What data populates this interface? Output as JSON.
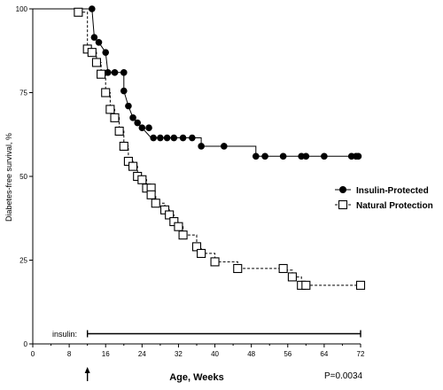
{
  "chart_data": {
    "type": "line",
    "subtype": "kaplan-meier step survival curve",
    "xlabel": "Age, Weeks",
    "ylabel": "Diabetes-free survival, %",
    "xlim": [
      0,
      72
    ],
    "ylim": [
      0,
      100
    ],
    "x_ticks": [
      "0",
      "8",
      "16",
      "24",
      "32",
      "40",
      "48",
      "56",
      "64",
      "72"
    ],
    "x_tick_values": [
      0,
      8,
      16,
      24,
      32,
      40,
      48,
      56,
      64,
      72
    ],
    "y_ticks": [
      "0",
      "25",
      "50",
      "75",
      "100"
    ],
    "y_tick_values": [
      0,
      25,
      50,
      75,
      100
    ],
    "grid": false,
    "legend_placement": "right-middle",
    "series": [
      {
        "name": "Insulin-Protected",
        "line_style": "solid",
        "marker": "filled-circle",
        "color": "#000000",
        "steps": [
          [
            0,
            100
          ],
          [
            13,
            100
          ],
          [
            13.5,
            91.5
          ],
          [
            14.5,
            90
          ],
          [
            16,
            87
          ],
          [
            16.5,
            81
          ],
          [
            20,
            81
          ],
          [
            20,
            75.5
          ],
          [
            21,
            71
          ],
          [
            22,
            67.5
          ],
          [
            23,
            66
          ],
          [
            24,
            64.5
          ],
          [
            26,
            61.5
          ],
          [
            37,
            61.5
          ],
          [
            37,
            59
          ],
          [
            49,
            59
          ],
          [
            49,
            56
          ],
          [
            71.5,
            56
          ]
        ],
        "markers": [
          [
            13,
            100
          ],
          [
            13.5,
            91.5
          ],
          [
            14.5,
            90
          ],
          [
            16,
            87
          ],
          [
            16.5,
            81
          ],
          [
            18,
            81
          ],
          [
            20,
            81
          ],
          [
            20,
            75.5
          ],
          [
            21,
            71
          ],
          [
            22,
            67.5
          ],
          [
            23,
            66
          ],
          [
            24,
            64.5
          ],
          [
            25.5,
            64.5
          ],
          [
            26.5,
            61.5
          ],
          [
            28,
            61.5
          ],
          [
            29.5,
            61.5
          ],
          [
            31,
            61.5
          ],
          [
            33,
            61.5
          ],
          [
            35,
            61.5
          ],
          [
            37,
            59
          ],
          [
            42,
            59
          ],
          [
            49,
            56
          ],
          [
            51,
            56
          ],
          [
            55,
            56
          ],
          [
            59,
            56
          ],
          [
            60,
            56
          ],
          [
            64,
            56
          ],
          [
            70,
            56
          ],
          [
            71,
            56
          ],
          [
            71.5,
            56
          ]
        ]
      },
      {
        "name": "Natural Protection",
        "line_style": "dashed",
        "marker": "open-square",
        "color": "#000000",
        "steps": [
          [
            0,
            100
          ],
          [
            10,
            100
          ],
          [
            10,
            99
          ],
          [
            12,
            99
          ],
          [
            12,
            88
          ],
          [
            13,
            88
          ],
          [
            13,
            87
          ],
          [
            14,
            87
          ],
          [
            14,
            84
          ],
          [
            15,
            84
          ],
          [
            15,
            80.5
          ],
          [
            16,
            80.5
          ],
          [
            16,
            75
          ],
          [
            17,
            75
          ],
          [
            17,
            70
          ],
          [
            18,
            70
          ],
          [
            18,
            67.5
          ],
          [
            19,
            67.5
          ],
          [
            19,
            63.5
          ],
          [
            20,
            63.5
          ],
          [
            20,
            59
          ],
          [
            21,
            59
          ],
          [
            21,
            54.5
          ],
          [
            22,
            54.5
          ],
          [
            22,
            53
          ],
          [
            23,
            53
          ],
          [
            23,
            50
          ],
          [
            24,
            50
          ],
          [
            24,
            49
          ],
          [
            25,
            49
          ],
          [
            25,
            46.5
          ],
          [
            26,
            46.5
          ],
          [
            26,
            44.5
          ],
          [
            27,
            44.5
          ],
          [
            27,
            42
          ],
          [
            29,
            42
          ],
          [
            29,
            40
          ],
          [
            30,
            40
          ],
          [
            30,
            38.5
          ],
          [
            31,
            38.5
          ],
          [
            31,
            36.5
          ],
          [
            32,
            36.5
          ],
          [
            32,
            35
          ],
          [
            33,
            35
          ],
          [
            33,
            32.5
          ],
          [
            36,
            32.5
          ],
          [
            36,
            29
          ],
          [
            37,
            29
          ],
          [
            37,
            27
          ],
          [
            40,
            27
          ],
          [
            40,
            24.5
          ],
          [
            45,
            24.5
          ],
          [
            45,
            22.5
          ],
          [
            55,
            22.5
          ],
          [
            55,
            22
          ],
          [
            57,
            22
          ],
          [
            57,
            20
          ],
          [
            59,
            20
          ],
          [
            59,
            17.5
          ],
          [
            60,
            17.5
          ],
          [
            72,
            17.5
          ]
        ],
        "markers": [
          [
            10,
            99
          ],
          [
            12,
            88
          ],
          [
            13,
            87
          ],
          [
            14,
            84
          ],
          [
            15,
            80.5
          ],
          [
            16,
            75
          ],
          [
            17,
            70
          ],
          [
            18,
            67.5
          ],
          [
            19,
            63.5
          ],
          [
            20,
            59
          ],
          [
            21,
            54.5
          ],
          [
            22,
            53
          ],
          [
            23,
            50
          ],
          [
            24,
            49
          ],
          [
            25,
            46.5
          ],
          [
            26,
            46.5
          ],
          [
            26,
            44.5
          ],
          [
            27,
            42
          ],
          [
            29,
            40
          ],
          [
            30,
            38.5
          ],
          [
            31,
            36.5
          ],
          [
            32,
            35
          ],
          [
            33,
            32.5
          ],
          [
            36,
            29
          ],
          [
            37,
            27
          ],
          [
            40,
            24.5
          ],
          [
            45,
            22.5
          ],
          [
            55,
            22.5
          ],
          [
            57,
            20
          ],
          [
            59,
            17.5
          ],
          [
            60,
            17.5
          ],
          [
            72,
            17.5
          ]
        ]
      }
    ],
    "annotations": {
      "insulin_bar_label": "insulin:",
      "insulin_bar_range": [
        12,
        72
      ],
      "insulin_start_arrow_x": 12,
      "p_value": "P=0.0034"
    }
  }
}
